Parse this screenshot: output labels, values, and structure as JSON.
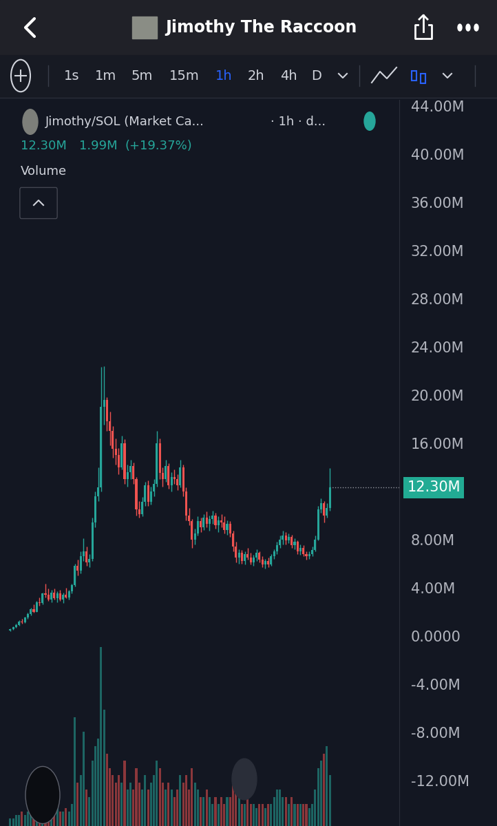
{
  "header": {
    "title": "Jimothy The Raccoon"
  },
  "toolbar": {
    "intervals": [
      "1s",
      "1m",
      "5m",
      "15m",
      "1h",
      "2h",
      "4h",
      "D"
    ],
    "selected": "1h"
  },
  "chart_data": {
    "type": "candlestick",
    "title": "Jimothy/SOL (Market Ca...",
    "subtitle": "· 1h · d...",
    "last": {
      "value": 12.3,
      "label": "12.30M"
    },
    "change": {
      "value": 1.99,
      "label": "1.99M"
    },
    "change_pct": {
      "value": 19.37,
      "label": "(+19.37%)"
    },
    "volume_label": "Volume",
    "ohlc": [
      [
        0.45,
        0.6,
        0.4,
        0.55
      ],
      [
        0.55,
        0.8,
        0.5,
        0.7
      ],
      [
        0.7,
        1.0,
        0.65,
        0.9
      ],
      [
        0.9,
        1.3,
        0.85,
        1.2
      ],
      [
        1.2,
        1.4,
        1.0,
        1.1
      ],
      [
        1.1,
        1.6,
        1.05,
        1.5
      ],
      [
        1.5,
        1.9,
        1.4,
        1.8
      ],
      [
        1.8,
        2.3,
        1.7,
        2.2
      ],
      [
        2.2,
        2.6,
        1.9,
        2.0
      ],
      [
        2.0,
        2.9,
        1.95,
        2.8
      ],
      [
        2.8,
        3.2,
        2.5,
        2.7
      ],
      [
        2.7,
        3.6,
        2.6,
        3.5
      ],
      [
        3.5,
        4.3,
        3.2,
        3.4
      ],
      [
        3.4,
        3.9,
        2.9,
        3.0
      ],
      [
        3.0,
        3.8,
        2.8,
        3.6
      ],
      [
        3.6,
        3.9,
        3.0,
        3.1
      ],
      [
        3.1,
        3.7,
        2.8,
        3.5
      ],
      [
        3.5,
        3.8,
        2.9,
        3.0
      ],
      [
        3.0,
        3.6,
        2.7,
        3.4
      ],
      [
        3.4,
        4.0,
        3.1,
        3.2
      ],
      [
        3.2,
        3.8,
        3.0,
        3.7
      ],
      [
        3.7,
        4.3,
        3.5,
        4.2
      ],
      [
        4.2,
        6.0,
        4.1,
        5.8
      ],
      [
        5.8,
        6.3,
        5.0,
        5.4
      ],
      [
        5.4,
        7.0,
        5.2,
        6.6
      ],
      [
        6.6,
        8.1,
        6.2,
        7.0
      ],
      [
        7.0,
        7.4,
        5.8,
        6.1
      ],
      [
        6.1,
        6.8,
        5.7,
        6.4
      ],
      [
        6.4,
        9.8,
        6.2,
        9.4
      ],
      [
        9.4,
        12.0,
        9.0,
        11.6
      ],
      [
        11.6,
        14.0,
        11.2,
        12.3
      ],
      [
        12.3,
        22.3,
        12.0,
        19.0
      ],
      [
        19.0,
        22.4,
        17.5,
        19.6
      ],
      [
        19.6,
        19.8,
        17.0,
        17.8
      ],
      [
        17.8,
        18.6,
        15.8,
        17.0
      ],
      [
        17.0,
        17.4,
        14.8,
        15.5
      ],
      [
        15.5,
        16.4,
        14.2,
        15.0
      ],
      [
        15.0,
        15.6,
        13.4,
        14.0
      ],
      [
        14.0,
        16.6,
        13.8,
        16.0
      ],
      [
        16.0,
        16.3,
        12.6,
        13.0
      ],
      [
        13.0,
        14.2,
        12.4,
        13.6
      ],
      [
        13.6,
        14.6,
        13.0,
        14.1
      ],
      [
        14.1,
        14.4,
        12.6,
        13.0
      ],
      [
        13.0,
        13.2,
        10.0,
        10.5
      ],
      [
        10.5,
        11.2,
        9.8,
        10.1
      ],
      [
        10.1,
        11.5,
        9.9,
        11.1
      ],
      [
        11.1,
        12.8,
        10.8,
        12.5
      ],
      [
        12.5,
        12.9,
        10.8,
        11.1
      ],
      [
        11.1,
        12.4,
        10.9,
        12.0
      ],
      [
        12.0,
        13.0,
        11.6,
        12.6
      ],
      [
        12.6,
        17.0,
        12.4,
        16.0
      ],
      [
        16.0,
        16.4,
        13.0,
        13.5
      ],
      [
        13.5,
        14.0,
        12.4,
        13.0
      ],
      [
        13.0,
        14.6,
        12.8,
        14.1
      ],
      [
        14.1,
        14.3,
        12.2,
        12.5
      ],
      [
        12.5,
        13.6,
        12.0,
        13.2
      ],
      [
        13.2,
        13.8,
        12.6,
        13.0
      ],
      [
        13.0,
        13.4,
        12.1,
        12.5
      ],
      [
        12.5,
        14.6,
        12.3,
        14.0
      ],
      [
        14.0,
        14.2,
        11.6,
        12.0
      ],
      [
        12.0,
        12.3,
        9.6,
        10.0
      ],
      [
        10.0,
        10.6,
        9.2,
        9.5
      ],
      [
        9.5,
        9.7,
        7.3,
        8.0
      ],
      [
        8.0,
        8.9,
        7.6,
        8.5
      ],
      [
        8.5,
        9.9,
        8.3,
        9.5
      ],
      [
        9.5,
        9.8,
        8.6,
        9.0
      ],
      [
        9.0,
        10.1,
        8.8,
        9.8
      ],
      [
        9.8,
        10.3,
        9.0,
        9.3
      ],
      [
        9.3,
        10.0,
        8.7,
        9.7
      ],
      [
        9.7,
        10.4,
        9.3,
        10.0
      ],
      [
        10.0,
        10.2,
        8.9,
        9.2
      ],
      [
        9.2,
        9.9,
        8.6,
        9.6
      ],
      [
        9.6,
        10.1,
        9.0,
        9.4
      ],
      [
        9.4,
        9.9,
        8.5,
        8.8
      ],
      [
        8.8,
        9.6,
        8.4,
        9.3
      ],
      [
        9.3,
        9.5,
        8.2,
        8.5
      ],
      [
        8.5,
        8.7,
        7.0,
        7.4
      ],
      [
        7.4,
        7.8,
        6.1,
        6.5
      ],
      [
        6.5,
        7.2,
        6.0,
        6.9
      ],
      [
        6.9,
        7.1,
        6.0,
        6.2
      ],
      [
        6.2,
        7.0,
        5.9,
        6.8
      ],
      [
        6.8,
        7.3,
        6.3,
        6.5
      ],
      [
        6.5,
        6.9,
        5.9,
        6.1
      ],
      [
        6.1,
        6.7,
        5.8,
        6.5
      ],
      [
        6.5,
        7.2,
        6.2,
        6.9
      ],
      [
        6.9,
        7.0,
        6.1,
        6.3
      ],
      [
        6.3,
        6.6,
        5.7,
        5.9
      ],
      [
        5.9,
        6.4,
        5.6,
        6.2
      ],
      [
        6.2,
        6.5,
        5.7,
        5.9
      ],
      [
        5.9,
        6.8,
        5.8,
        6.6
      ],
      [
        6.6,
        7.2,
        6.4,
        7.0
      ],
      [
        7.0,
        7.8,
        6.8,
        7.5
      ],
      [
        7.5,
        8.3,
        7.3,
        8.0
      ],
      [
        8.0,
        8.7,
        7.6,
        8.3
      ],
      [
        8.3,
        8.6,
        7.6,
        7.9
      ],
      [
        7.9,
        8.5,
        7.7,
        8.2
      ],
      [
        8.2,
        8.4,
        7.3,
        7.5
      ],
      [
        7.5,
        8.1,
        7.2,
        7.8
      ],
      [
        7.8,
        7.9,
        6.8,
        7.0
      ],
      [
        7.0,
        7.6,
        6.7,
        7.3
      ],
      [
        7.3,
        7.5,
        6.6,
        6.8
      ],
      [
        6.8,
        7.0,
        6.3,
        6.6
      ],
      [
        6.6,
        7.0,
        6.4,
        6.8
      ],
      [
        6.8,
        7.4,
        6.6,
        7.1
      ],
      [
        7.1,
        8.3,
        7.0,
        8.0
      ],
      [
        8.0,
        10.8,
        7.9,
        10.5
      ],
      [
        10.5,
        11.4,
        10.2,
        11.0
      ],
      [
        11.0,
        11.2,
        9.4,
        10.0
      ],
      [
        10.0,
        11.0,
        9.8,
        10.6
      ],
      [
        10.6,
        13.9,
        10.4,
        12.3
      ]
    ],
    "volume": [
      1,
      1,
      1.5,
      1.5,
      2,
      1.5,
      2,
      2.5,
      2,
      2.5,
      3,
      3,
      3.5,
      2.5,
      2.5,
      2,
      2.5,
      2,
      2,
      2.5,
      2,
      3,
      15,
      6,
      7,
      13,
      5,
      4,
      9,
      11,
      12,
      24.6,
      16,
      10,
      8,
      7,
      6,
      7,
      6,
      9,
      5,
      6,
      5,
      8,
      6,
      5,
      7,
      5,
      6,
      7,
      9,
      8,
      6,
      5,
      6,
      5,
      4,
      5,
      7,
      6,
      7,
      5,
      8,
      6,
      5,
      4,
      4,
      5,
      4,
      3,
      4,
      3,
      4,
      3,
      4,
      4,
      6,
      5,
      4,
      3,
      3,
      4,
      3,
      3,
      2.5,
      3,
      3,
      2.5,
      3,
      3,
      4,
      5,
      5,
      4,
      4,
      3,
      4,
      3,
      3,
      3,
      3,
      3,
      2.5,
      3,
      5,
      8,
      9,
      10,
      11,
      7
    ],
    "volume_ylim": [
      0,
      100
    ],
    "xlim": [
      -3.5,
      132.7
    ],
    "ylim": [
      -15.8,
      44.5
    ],
    "yticks": [
      {
        "value": 44,
        "label": "44.00M"
      },
      {
        "value": 40,
        "label": "40.00M"
      },
      {
        "value": 36,
        "label": "36.00M"
      },
      {
        "value": 32,
        "label": "32.00M"
      },
      {
        "value": 28,
        "label": "28.00M"
      },
      {
        "value": 24,
        "label": "24.00M"
      },
      {
        "value": 20,
        "label": "20.00M"
      },
      {
        "value": 16,
        "label": "16.00M"
      },
      {
        "value": 8,
        "label": "8.00M"
      },
      {
        "value": 4,
        "label": "4.00M"
      },
      {
        "value": 0,
        "label": "0.0000"
      },
      {
        "value": -4,
        "label": "-4.00M"
      },
      {
        "value": -8,
        "label": "-8.00M"
      },
      {
        "value": -12,
        "label": "-12.00M"
      }
    ],
    "grid": false,
    "tick_labels": "y"
  }
}
